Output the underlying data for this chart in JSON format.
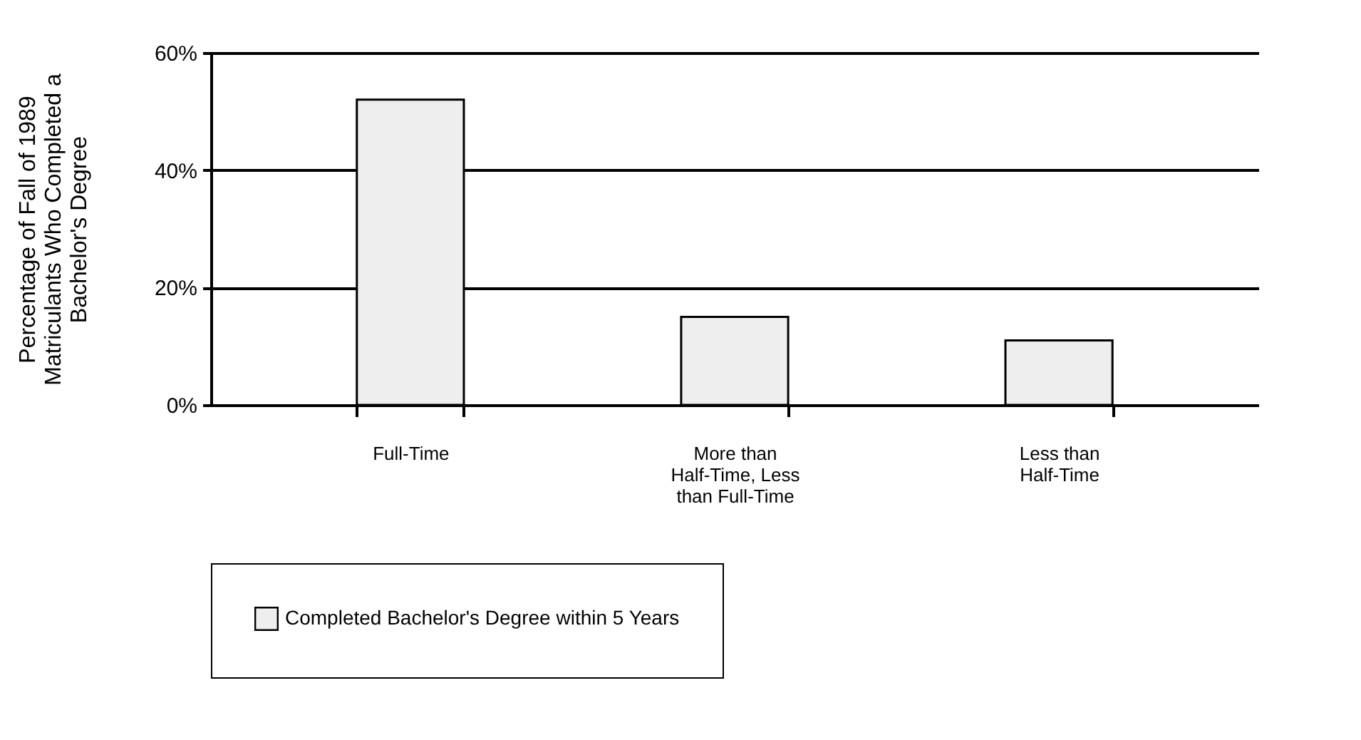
{
  "chart_data": {
    "type": "bar",
    "ylabel": "Percentage of Fall of 1989 Matriculants Who Completed a Bachelor's Degree",
    "categories": [
      "Full-Time",
      "More than Half-Time, Less than Full-Time",
      "Less than Half-Time"
    ],
    "series": [
      {
        "name": "Completed Bachelor's Degree within 5 Years",
        "color": "#eeeeee",
        "values": [
          52,
          15,
          11
        ]
      }
    ],
    "ylim": [
      0,
      60
    ],
    "yticks": [
      {
        "value": 0,
        "label": "0%"
      },
      {
        "value": 20,
        "label": "20%"
      },
      {
        "value": 40,
        "label": "40%"
      },
      {
        "value": 60,
        "label": "60%"
      }
    ],
    "grid": "y",
    "legend": "bottom"
  }
}
